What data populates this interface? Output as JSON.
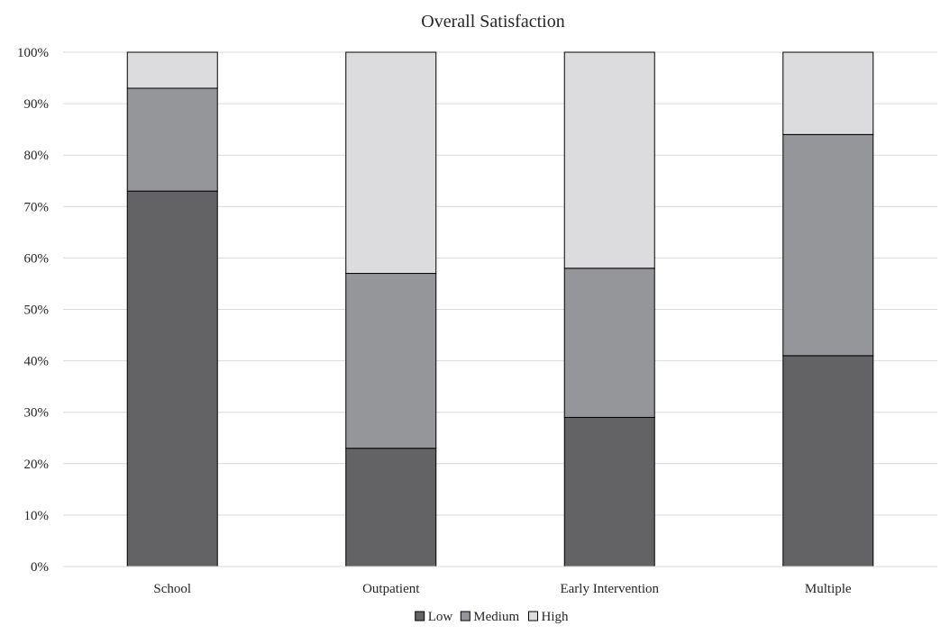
{
  "chart_data": {
    "type": "bar",
    "stacked": true,
    "title": "Overall Satisfaction",
    "xlabel": "",
    "ylabel": "",
    "categories": [
      "School",
      "Outpatient",
      "Early Intervention",
      "Multiple"
    ],
    "series": [
      {
        "name": "Low",
        "values": [
          73,
          23,
          29,
          41
        ],
        "color": "#636365"
      },
      {
        "name": "Medium",
        "values": [
          20,
          34,
          29,
          43
        ],
        "color": "#959699"
      },
      {
        "name": "High",
        "values": [
          7,
          43,
          42,
          16
        ],
        "color": "#dcdcde"
      }
    ],
    "ylim": [
      0,
      100
    ],
    "yticks": [
      "0%",
      "10%",
      "20%",
      "30%",
      "40%",
      "50%",
      "60%",
      "70%",
      "80%",
      "90%",
      "100%"
    ],
    "grid": true,
    "legend_position": "bottom"
  }
}
